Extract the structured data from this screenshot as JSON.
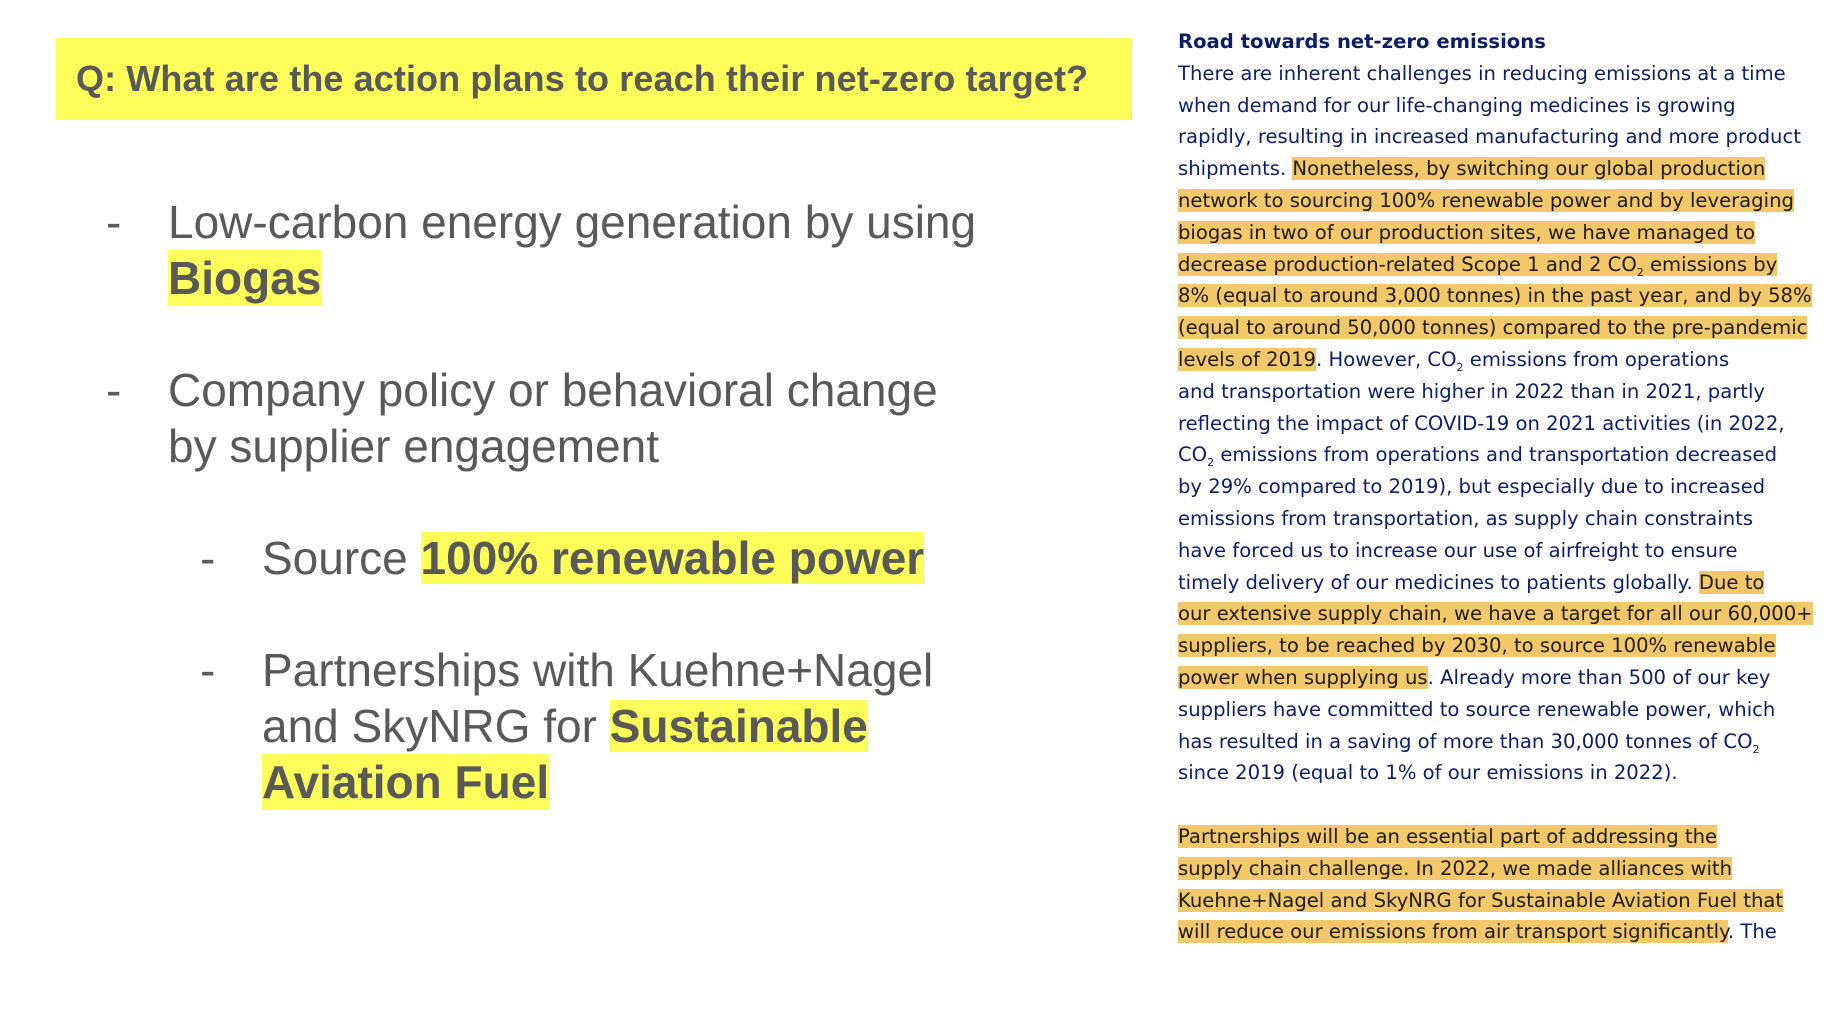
{
  "question": "Q: What are the action plans to reach their net-zero target?",
  "bullets": {
    "b1": {
      "dash": "-",
      "line1": "Low-carbon energy generation by using",
      "highlight": "Biogas"
    },
    "b2": {
      "dash": "-",
      "line1": "Company policy or behavioral change",
      "line2": "by supplier engagement"
    },
    "b3": {
      "dash": "-",
      "prefix": "Source ",
      "highlight": "100% renewable power"
    },
    "b4": {
      "dash": "-",
      "line1": "Partnerships with Kuehne+Nagel",
      "line2_prefix": "and SkyNRG for ",
      "highlight_a": "Sustainable",
      "highlight_b": "Aviation Fuel"
    }
  },
  "doc": {
    "title": "Road towards net-zero emissions",
    "l1": "There are inherent challenges in reducing emissions at a time",
    "l2": "when demand for our life-changing medicines is growing",
    "l3": "rapidly, resulting in increased manufacturing and more product",
    "l4a": "shipments. ",
    "l4b": "Nonetheless, by switching our global production",
    "l5": "network to sourcing 100% renewable power and by leveraging",
    "l6": "biogas in two of our production sites, we have managed to",
    "l7a": "decrease production-related Scope 1 and 2 CO",
    "l7sub": "2",
    "l7b": " emissions by",
    "l8": "8% (equal to around 3,000 tonnes) in the past year, and by 58%",
    "l9": "(equal to around 50,000 tonnes) compared to the pre-pandemic",
    "l10a": "levels of 2019",
    "l10b": ". However, CO",
    "l10sub": "2",
    "l10c": " emissions from operations",
    "l11": "and transportation were higher in 2022 than in 2021, partly",
    "l12": "reflecting the impact of COVID-19 on 2021 activities (in 2022,",
    "l13a": "CO",
    "l13sub": "2",
    "l13b": " emissions from operations and transportation decreased",
    "l14": "by 29% compared to 2019), but especially due to increased",
    "l15": "emissions from transportation, as supply chain constraints",
    "l16": "have forced us to increase our use of airfreight to ensure",
    "l17a": "timely delivery of our medicines to patients globally. ",
    "l17b": "Due to",
    "l18": "our extensive supply chain, we have a target for all our 60,000+",
    "l19": "suppliers, to be reached by 2030, to source 100% renewable",
    "l20a": "power when supplying us",
    "l20b": ". Already more than 500 of our key",
    "l21": "suppliers have committed to source renewable power, which",
    "l22a": "has resulted in a saving of more than 30,000 tonnes of CO",
    "l22sub": "2",
    "l23": "since 2019 (equal to 1% of our emissions in 2022).",
    "p2l1": "Partnerships will be an essential part of addressing the",
    "p2l2": "supply chain challenge. In 2022, we made alliances with",
    "p2l3": "Kuehne+Nagel and SkyNRG for Sustainable Aviation Fuel that",
    "p2l4a": "will reduce our emissions from air transport significantly",
    "p2l4b": ". The"
  }
}
